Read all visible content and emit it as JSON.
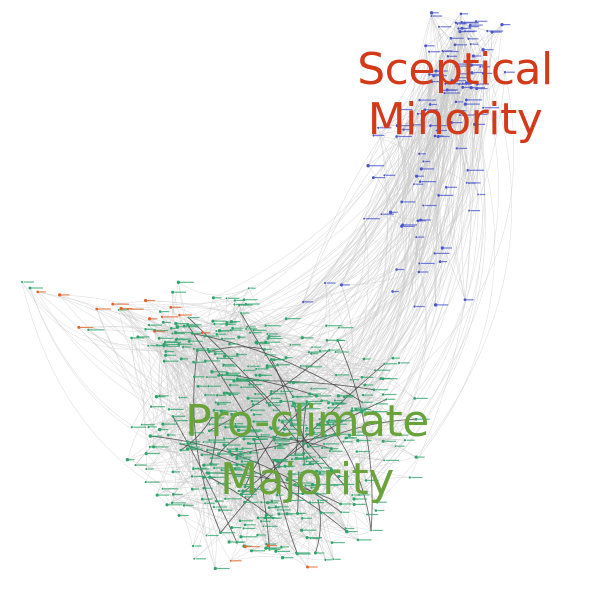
{
  "colors": {
    "background": "#ffffff",
    "sceptical": "#d23a1a",
    "majority": "#6aa33c",
    "edge": "#c8c8c8",
    "edge_dark": "#3a3a3a",
    "node_green": "#2fa36b",
    "node_blue": "#4a57c9",
    "node_orange": "#e0632a"
  },
  "labels": {
    "sceptical": {
      "line1": "Sceptical",
      "line2": "Minority"
    },
    "majority": {
      "line1": "Pro-climate",
      "line2": "Majority"
    }
  },
  "clusters": [
    {
      "name": "sceptical",
      "node_color": "blue",
      "approx_node_count": 120
    },
    {
      "name": "majority",
      "node_color": "green",
      "approx_node_count": 420
    },
    {
      "name": "fringe",
      "node_color": "orange",
      "approx_node_count": 18
    }
  ]
}
